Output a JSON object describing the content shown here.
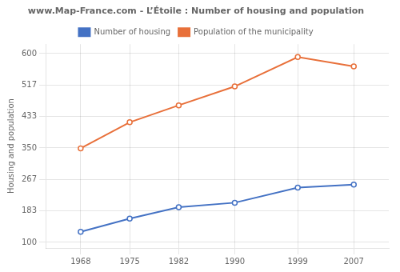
{
  "chart_data": {
    "type": "line",
    "title": "www.Map-France.com - L’Étoile : Number of housing and population",
    "ylabel": "Housing and population",
    "x": [
      1968,
      1975,
      1982,
      1990,
      1999,
      2007
    ],
    "series": [
      {
        "name": "Number of housing",
        "color": "#4472c4",
        "values": [
          128,
          163,
          193,
          205,
          245,
          253
        ],
        "marker": "circle"
      },
      {
        "name": "Population of the municipality",
        "color": "#e8703a",
        "values": [
          349,
          418,
          463,
          513,
          591,
          566
        ],
        "marker": "circle"
      }
    ],
    "xlim": [
      1963,
      2012
    ],
    "xticks": [
      1968,
      1975,
      1982,
      1990,
      1999,
      2007
    ],
    "ylim": [
      85,
      625
    ],
    "yticks": [
      100,
      183,
      267,
      350,
      433,
      517,
      600
    ],
    "grid": true,
    "legend": "top"
  }
}
